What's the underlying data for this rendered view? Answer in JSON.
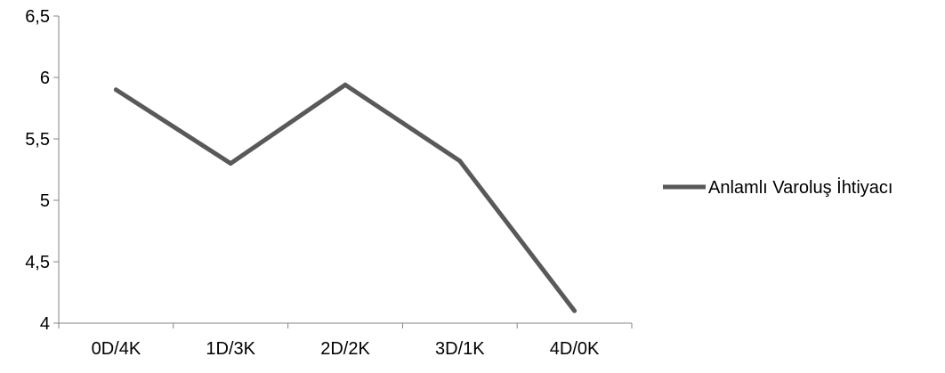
{
  "chart_data": {
    "type": "line",
    "title": "",
    "xlabel": "",
    "ylabel": "",
    "categories": [
      "0D/4K",
      "1D/3K",
      "2D/2K",
      "3D/1K",
      "4D/0K"
    ],
    "y_ticks": [
      "4",
      "4,5",
      "5",
      "5,5",
      "6",
      "6,5"
    ],
    "y_tick_values": [
      4,
      4.5,
      5,
      5.5,
      6,
      6.5
    ],
    "ylim": [
      4,
      6.5
    ],
    "series": [
      {
        "name": "Anlamlı Varoluş İhtiyacı",
        "values": [
          5.9,
          5.3,
          5.94,
          5.32,
          4.1
        ],
        "color": "#595959"
      }
    ],
    "grid": false,
    "legend_position": "right"
  }
}
